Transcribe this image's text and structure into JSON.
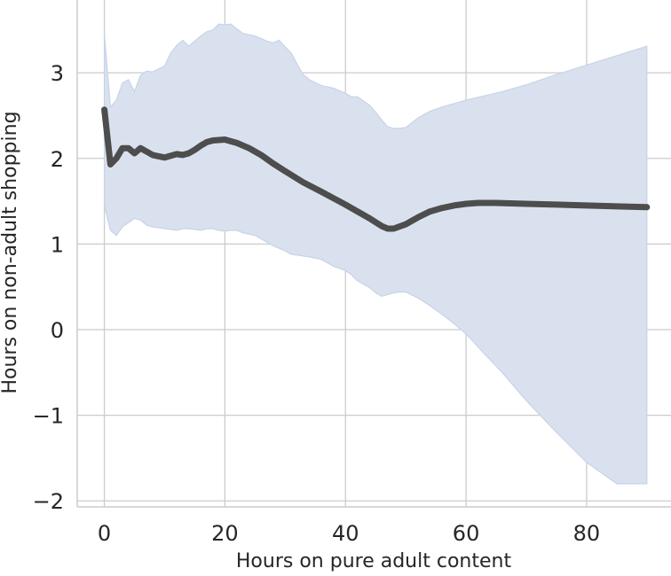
{
  "chart_data": {
    "type": "line",
    "title": "",
    "xlabel": "Hours on pure adult content",
    "ylabel": "Hours on non-adult shopping",
    "xlim": [
      -4.5,
      94
    ],
    "ylim": [
      -2.07,
      3.85
    ],
    "xticks": [
      0,
      20,
      40,
      60,
      80
    ],
    "yticks": [
      -2,
      -1,
      0,
      1,
      2,
      3
    ],
    "xtick_labels": [
      "0",
      "20",
      "40",
      "60",
      "80"
    ],
    "ytick_labels": [
      "−2",
      "−1",
      "0",
      "1",
      "2",
      "3"
    ],
    "grid": true,
    "legend": "none",
    "colors": {
      "line": "#4d4d4d",
      "band": "#dae1ee",
      "band_edge": "#c8d3e8",
      "grid": "#cccccc"
    },
    "series": [
      {
        "x": [
          0,
          1,
          2,
          3,
          4,
          5,
          6,
          7,
          8,
          10,
          12,
          13,
          14,
          15,
          16,
          17,
          18,
          20,
          22,
          24,
          26,
          28,
          30,
          33,
          36,
          40,
          44,
          46,
          47,
          48,
          50,
          52,
          54,
          56,
          58,
          60,
          62,
          65,
          70,
          75,
          80,
          85,
          90
        ],
        "y": [
          2.57,
          1.93,
          2.0,
          2.12,
          2.12,
          2.06,
          2.12,
          2.08,
          2.04,
          2.01,
          2.05,
          2.04,
          2.06,
          2.1,
          2.15,
          2.19,
          2.21,
          2.22,
          2.18,
          2.12,
          2.04,
          1.94,
          1.85,
          1.72,
          1.61,
          1.46,
          1.3,
          1.21,
          1.18,
          1.18,
          1.23,
          1.31,
          1.38,
          1.42,
          1.45,
          1.47,
          1.48,
          1.48,
          1.47,
          1.46,
          1.45,
          1.44,
          1.43
        ]
      }
    ],
    "band": {
      "x": [
        0,
        1,
        2,
        3,
        4,
        5,
        6,
        7,
        8,
        10,
        11,
        12,
        13,
        14,
        15,
        16,
        17,
        18,
        19,
        20,
        21,
        22,
        23,
        25,
        27,
        28,
        29,
        30,
        31,
        32,
        33,
        34,
        36,
        38,
        40,
        41,
        42,
        44,
        45,
        46,
        47,
        48,
        49,
        50,
        52,
        54,
        56,
        58,
        60,
        63,
        66,
        70,
        75,
        80,
        85,
        90
      ],
      "upper": [
        3.45,
        2.6,
        2.68,
        2.88,
        2.92,
        2.78,
        2.97,
        3.02,
        3.01,
        3.08,
        3.23,
        3.32,
        3.38,
        3.31,
        3.37,
        3.43,
        3.48,
        3.5,
        3.57,
        3.56,
        3.57,
        3.51,
        3.46,
        3.43,
        3.37,
        3.35,
        3.38,
        3.3,
        3.23,
        3.1,
        2.98,
        2.92,
        2.85,
        2.82,
        2.76,
        2.72,
        2.72,
        2.62,
        2.54,
        2.45,
        2.37,
        2.35,
        2.35,
        2.36,
        2.47,
        2.55,
        2.6,
        2.64,
        2.68,
        2.73,
        2.78,
        2.86,
        2.98,
        3.09,
        3.2,
        3.31
      ],
      "lower": [
        1.45,
        1.16,
        1.1,
        1.2,
        1.25,
        1.3,
        1.28,
        1.22,
        1.2,
        1.18,
        1.17,
        1.16,
        1.18,
        1.18,
        1.17,
        1.16,
        1.18,
        1.18,
        1.16,
        1.15,
        1.16,
        1.16,
        1.13,
        1.1,
        1.02,
        0.98,
        0.95,
        0.92,
        0.88,
        0.87,
        0.86,
        0.85,
        0.82,
        0.74,
        0.69,
        0.64,
        0.57,
        0.49,
        0.43,
        0.39,
        0.41,
        0.43,
        0.44,
        0.44,
        0.37,
        0.28,
        0.18,
        0.07,
        -0.05,
        -0.28,
        -0.5,
        -0.83,
        -1.2,
        -1.55,
        -1.8,
        -1.8
      ]
    }
  }
}
